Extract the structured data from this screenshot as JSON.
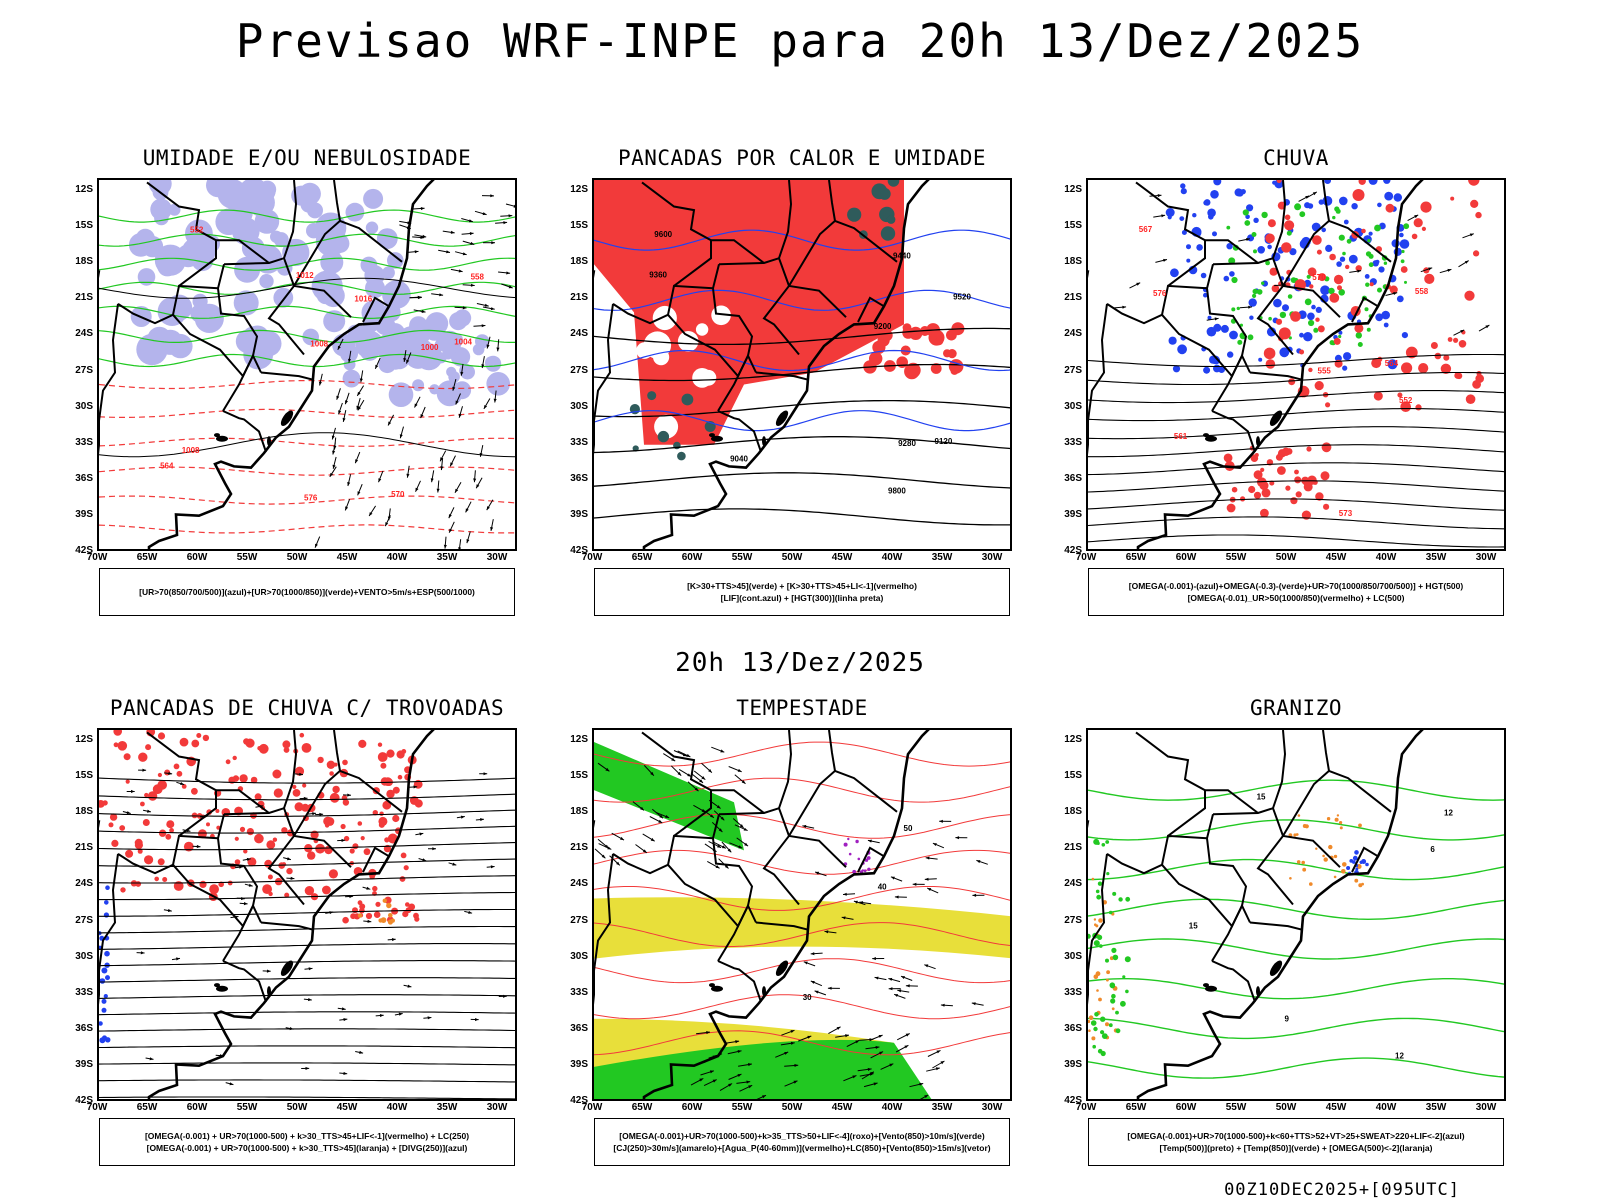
{
  "title": "Previsao WRF-INPE  para 20h 13/Dez/2025",
  "subtitle": "20h 13/Dez/2025",
  "footer": "00Z10DEC2025+[095UTC]",
  "axes": {
    "lat_labels": [
      "12S",
      "15S",
      "18S",
      "21S",
      "24S",
      "27S",
      "30S",
      "33S",
      "36S",
      "39S",
      "42S"
    ],
    "lon_labels": [
      "70W",
      "65W",
      "60W",
      "55W",
      "50W",
      "45W",
      "40W",
      "35W",
      "30W"
    ]
  },
  "colors": {
    "blue_fill": "#b4b4ec",
    "red": "#f23a3a",
    "green": "#22c822",
    "blue": "#2241f0",
    "yellow": "#e8df3a",
    "orange": "#f08a2a",
    "purple": "#a020c0",
    "darkteal": "#2f5b5b",
    "black": "#000000"
  },
  "panels": [
    {
      "title": "UMIDADE E/OU NEBULOSIDADE",
      "legend": [
        "[UR>70(850/700/500)](azul)+[UR>70(1000/850)](verde)+VENTO>5m/s+ESP(500/1000)"
      ],
      "contour_labels": [
        "1008",
        "1004",
        "1000",
        "1016",
        "1012",
        "1008",
        "576",
        "570",
        "564",
        "558",
        "552"
      ]
    },
    {
      "title": "PANCADAS POR CALOR E UMIDADE",
      "legend": [
        "[K>30+TTS>45](verde) + [K>30+TTS>45+LI<-1](vermelho)",
        "[LIF](cont.azul) + [HGT(300)](linha preta)"
      ],
      "contour_labels": [
        "9600",
        "9520",
        "9440",
        "9360",
        "9280",
        "9200",
        "9120",
        "9040",
        "9800"
      ]
    },
    {
      "title": "CHUVA",
      "legend": [
        "[OMEGA(-0.001)-(azul)+OMEGA(-0.3)-(verde)+UR>70(1000/850/700/500)] + HGT(500)",
        "[OMEGA(-0.01)_UR>50(1000/850)(vermelho) + LC(500)"
      ],
      "contour_labels": [
        "576",
        "573",
        "570",
        "567",
        "564",
        "561",
        "558",
        "555",
        "552"
      ]
    },
    {
      "title": "PANCADAS DE CHUVA C/ TROVOADAS",
      "legend": [
        "[OMEGA(-0.001) + UR>70(1000-500) + k>30_TTS>45+LIF<-1](vermelho) + LC(250)",
        "[OMEGA(-0.001) + UR>70(1000-500) + k>30_TTS>45](laranja) + [DIVG(250)](azul)"
      ],
      "contour_labels": []
    },
    {
      "title": "TEMPESTADE",
      "legend": [
        "[OMEGA(-0.001)+UR>70(1000-500)+k>35_TTS>50+LIF<-4](roxo)+[Vento(850)>10m/s](verde)",
        "[CJ(250)>30m/s](amarelo)+[Agua_P(40-60mm)](vermelho)+LC(850)+[Vento(850)>15m/s](vetor)"
      ],
      "contour_labels": [
        "40",
        "50",
        "30"
      ]
    },
    {
      "title": "GRANIZO",
      "legend": [
        "[OMEGA(-0.001)+UR>70(1000-500)+k<60+TTS>52+VT>25+SWEAT>220+LIF<-2](azul)",
        "[Temp(500)](preto) + [Temp(850)](verde) + [OMEGA(500)<-2](laranja)"
      ],
      "contour_labels": [
        "15",
        "12",
        "9",
        "6",
        "15",
        "12"
      ]
    }
  ]
}
